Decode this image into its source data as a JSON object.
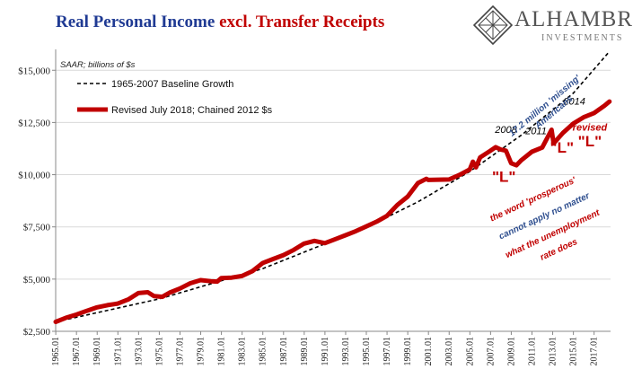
{
  "header": {
    "title_part1": "Real Personal Income ",
    "title_part2": "excl. Transfer Receipts"
  },
  "logo": {
    "brand": "ALHAMBRA",
    "sub": "INVESTMENTS",
    "icon": "diamond-lattice-icon"
  },
  "colors": {
    "series_red": "#c00000",
    "baseline": "#000000",
    "title_blue": "#1f3a93",
    "annotation_blue": "#2f4f8f"
  },
  "chart_data": {
    "type": "line",
    "unit_note": "SAAR; billions of $s",
    "ylim": [
      2500,
      16000
    ],
    "xlim": [
      1965.0,
      2018.6
    ],
    "y_ticks": [
      {
        "value": 2500,
        "label": "$2,500"
      },
      {
        "value": 5000,
        "label": "$5,000"
      },
      {
        "value": 7500,
        "label": "$7,500"
      },
      {
        "value": 10000,
        "label": "$10,000"
      },
      {
        "value": 12500,
        "label": "$12,500"
      },
      {
        "value": 15000,
        "label": "$15,000"
      }
    ],
    "x_tick_labels": [
      "1965.01",
      "1967.01",
      "1969.01",
      "1971.01",
      "1973.01",
      "1975.01",
      "1977.01",
      "1979.01",
      "1981.01",
      "1983.01",
      "1985.01",
      "1987.01",
      "1989.01",
      "1991.01",
      "1993.01",
      "1995.01",
      "1997.01",
      "1999.01",
      "2001.01",
      "2003.01",
      "2005.01",
      "2007.01",
      "2009.01",
      "2011.01",
      "2013.01",
      "2015.01",
      "2017.01"
    ],
    "legend": "top-left",
    "series": [
      {
        "name": "1965-2007 Baseline Growth",
        "style": "dashed",
        "x": [
          1965.0,
          1975,
          1985,
          1995,
          2000,
          2005,
          2010,
          2015,
          2018.5
        ],
        "y": [
          2950,
          4050,
          5500,
          7480,
          8700,
          10150,
          11900,
          13900,
          15900
        ]
      },
      {
        "name": "Revised July 2018; Chained 2012 $s",
        "style": "solid",
        "x": [
          1965.0,
          1966,
          1967,
          1968,
          1969,
          1970,
          1971,
          1972,
          1973,
          1973.9,
          1974.5,
          1975.3,
          1976,
          1977,
          1978,
          1979,
          1980,
          1980.6,
          1981,
          1982,
          1983,
          1984,
          1985,
          1986,
          1987,
          1988,
          1989,
          1990,
          1991,
          1992,
          1993,
          1994,
          1995,
          1996,
          1997,
          1998,
          1999,
          2000,
          2000.8,
          2001,
          2002,
          2003,
          2004,
          2005,
          2005.3,
          2005.6,
          2006,
          2007,
          2007.5,
          2008,
          2008.5,
          2009,
          2009.5,
          2010,
          2011,
          2012,
          2012.9,
          2013.1,
          2013.5,
          2014,
          2015,
          2016,
          2017,
          2018,
          2018.5
        ],
        "y": [
          2950,
          3150,
          3300,
          3480,
          3650,
          3750,
          3830,
          4020,
          4330,
          4370,
          4190,
          4150,
          4350,
          4550,
          4800,
          4950,
          4900,
          4880,
          5050,
          5070,
          5150,
          5380,
          5770,
          5960,
          6150,
          6400,
          6700,
          6830,
          6720,
          6910,
          7100,
          7300,
          7520,
          7750,
          8030,
          8550,
          8950,
          9600,
          9800,
          9750,
          9760,
          9770,
          9990,
          10250,
          10620,
          10350,
          10830,
          11150,
          11320,
          11200,
          11150,
          10550,
          10450,
          10700,
          11100,
          11300,
          12150,
          11500,
          11720,
          12000,
          12450,
          12750,
          12950,
          13300,
          13500
        ]
      }
    ],
    "annotations": [
      {
        "text": "2008",
        "x": 2008.5,
        "y": 12000,
        "color": "#000000",
        "italic": true
      },
      {
        "text": "2011",
        "x": 2011.4,
        "y": 11930,
        "color": "#000000",
        "italic": true
      },
      {
        "text": "2014",
        "x": 2015.1,
        "y": 13350,
        "color": "#000000",
        "italic": true
      },
      {
        "text": "\"L\"",
        "x": 2008.3,
        "y": 9650,
        "color": "#c00000",
        "italic": false
      },
      {
        "text": "\"L\"",
        "x": 2013.9,
        "y": 11050,
        "color": "#c00000",
        "italic": false
      },
      {
        "text": "revised",
        "x": 2016.6,
        "y": 12100,
        "color": "#c00000",
        "italic": true
      },
      {
        "text": "\"L\"",
        "x": 2016.6,
        "y": 11350,
        "color": "#c00000",
        "italic": false
      },
      {
        "text": "17.2 million 'missing'",
        "x": 2012.4,
        "y": 13200,
        "color": "#2f4f8f",
        "italic": true,
        "rotate": -40
      },
      {
        "text": "Americans",
        "x": 2013.3,
        "y": 12900,
        "color": "#2f4f8f",
        "italic": true,
        "rotate": -40
      },
      {
        "text": "the word 'prosperous'",
        "x": 2011.2,
        "y": 8700,
        "color": "#c00000",
        "italic": true,
        "rotate": -25
      },
      {
        "text": "cannot apply no matter",
        "x": 2012.3,
        "y": 7900,
        "color": "#2f4f8f",
        "italic": true,
        "rotate": -25
      },
      {
        "text": "what the unemployment",
        "x": 2013.1,
        "y": 7050,
        "color": "#c00000",
        "italic": true,
        "rotate": -25
      },
      {
        "text": "rate does",
        "x": 2013.7,
        "y": 6300,
        "color": "#c00000",
        "italic": true,
        "rotate": -25
      }
    ]
  }
}
